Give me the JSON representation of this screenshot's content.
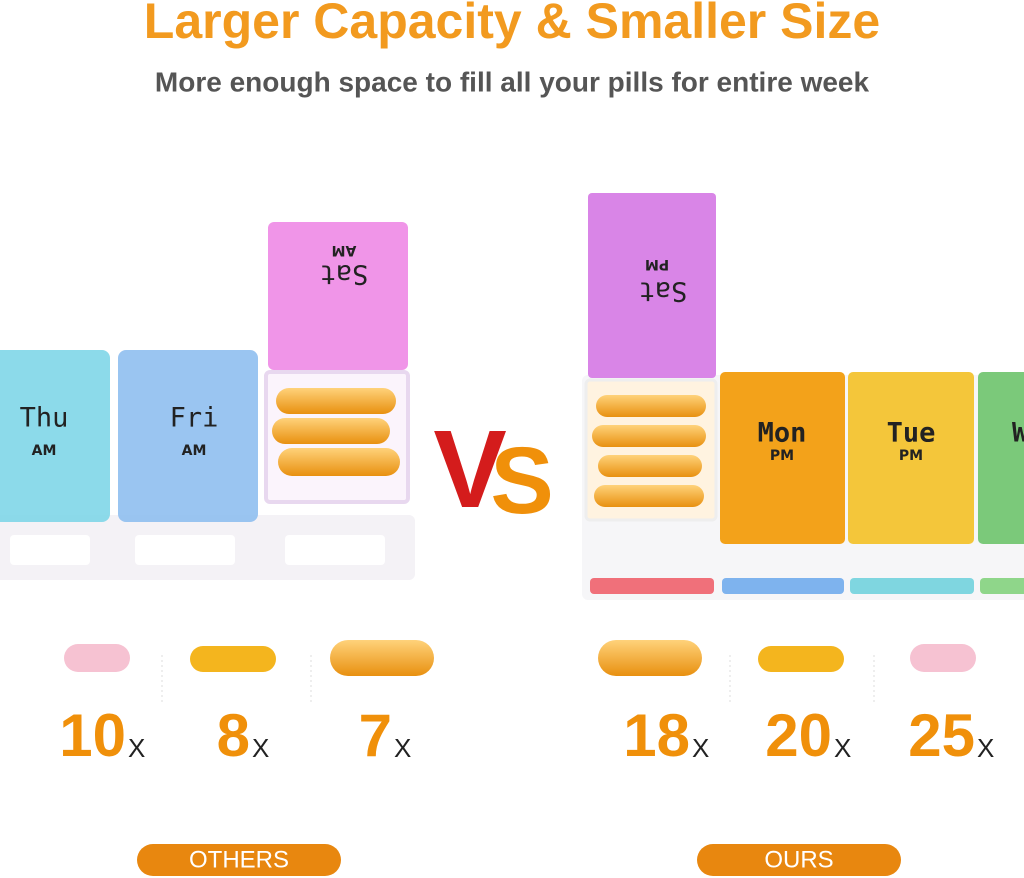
{
  "header": {
    "title": "Larger Capacity & Smaller Size",
    "subtitle": "More enough space to fill all your pills for entire week"
  },
  "others": {
    "label": "OTHERS",
    "boxes": [
      {
        "day": "Thu",
        "time": "AM"
      },
      {
        "day": "Fri",
        "time": "AM"
      },
      {
        "day": "Sat",
        "time": "AM"
      }
    ],
    "counts": [
      {
        "count": "10",
        "unit": "X"
      },
      {
        "count": "8",
        "unit": "X"
      },
      {
        "count": "7",
        "unit": "X"
      }
    ]
  },
  "vs": {
    "v": "V",
    "s": "S"
  },
  "ours": {
    "label": "OURS",
    "boxes": [
      {
        "day": "Sat",
        "time": "PM"
      },
      {
        "day": "Mon",
        "time": "PM"
      },
      {
        "day": "Tue",
        "time": "PM"
      },
      {
        "day": "W"
      }
    ],
    "counts": [
      {
        "count": "18",
        "unit": "X"
      },
      {
        "count": "20",
        "unit": "X"
      },
      {
        "count": "25",
        "unit": "X"
      }
    ]
  }
}
